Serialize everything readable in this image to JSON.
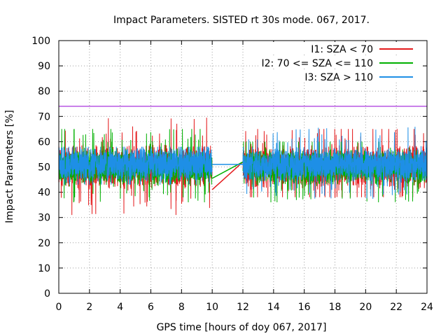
{
  "chart_data": {
    "type": "line",
    "title": "Impact Parameters. SISTED rt 30s mode. 067, 2017.",
    "xlabel": "GPS time [hours of doy 067, 2017]",
    "ylabel": "Impact Parameters [%]",
    "xlim": [
      0,
      24
    ],
    "ylim": [
      0,
      100
    ],
    "xticks": [
      0,
      2,
      4,
      6,
      8,
      10,
      12,
      14,
      16,
      18,
      20,
      22,
      24
    ],
    "yticks": [
      0,
      10,
      20,
      30,
      40,
      50,
      60,
      70,
      80,
      90,
      100
    ],
    "grid": true,
    "legend_position": "top-right",
    "reference_line": {
      "y": 74,
      "color": "#9400d3"
    },
    "data_gap": {
      "start": 10.0,
      "end": 12.0
    },
    "series": [
      {
        "name": "I1: SZA < 70",
        "color": "#e41a1c",
        "center": 50,
        "amplitude": 8.5,
        "range_before_gap": [
          31,
          70
        ],
        "range_after_gap": [
          38,
          65
        ],
        "gap_line": [
          [
            10.0,
            41
          ],
          [
            12.0,
            52
          ]
        ]
      },
      {
        "name": "I2: 70 <= SZA <= 110",
        "color": "#00b000",
        "center": 50,
        "amplitude": 7,
        "range_before_gap": [
          36,
          65
        ],
        "range_after_gap": [
          36,
          60
        ],
        "gap_line": [
          [
            10.0,
            45.5
          ],
          [
            12.0,
            52
          ]
        ]
      },
      {
        "name": "I3: SZA > 110",
        "color": "#1e8fe6",
        "center": 51,
        "amplitude": 6.5,
        "range_before_gap": [
          43,
          58
        ],
        "range_after_gap": [
          32,
          70
        ],
        "gap_line": [
          [
            10.0,
            51
          ],
          [
            12.0,
            51
          ]
        ]
      }
    ]
  }
}
